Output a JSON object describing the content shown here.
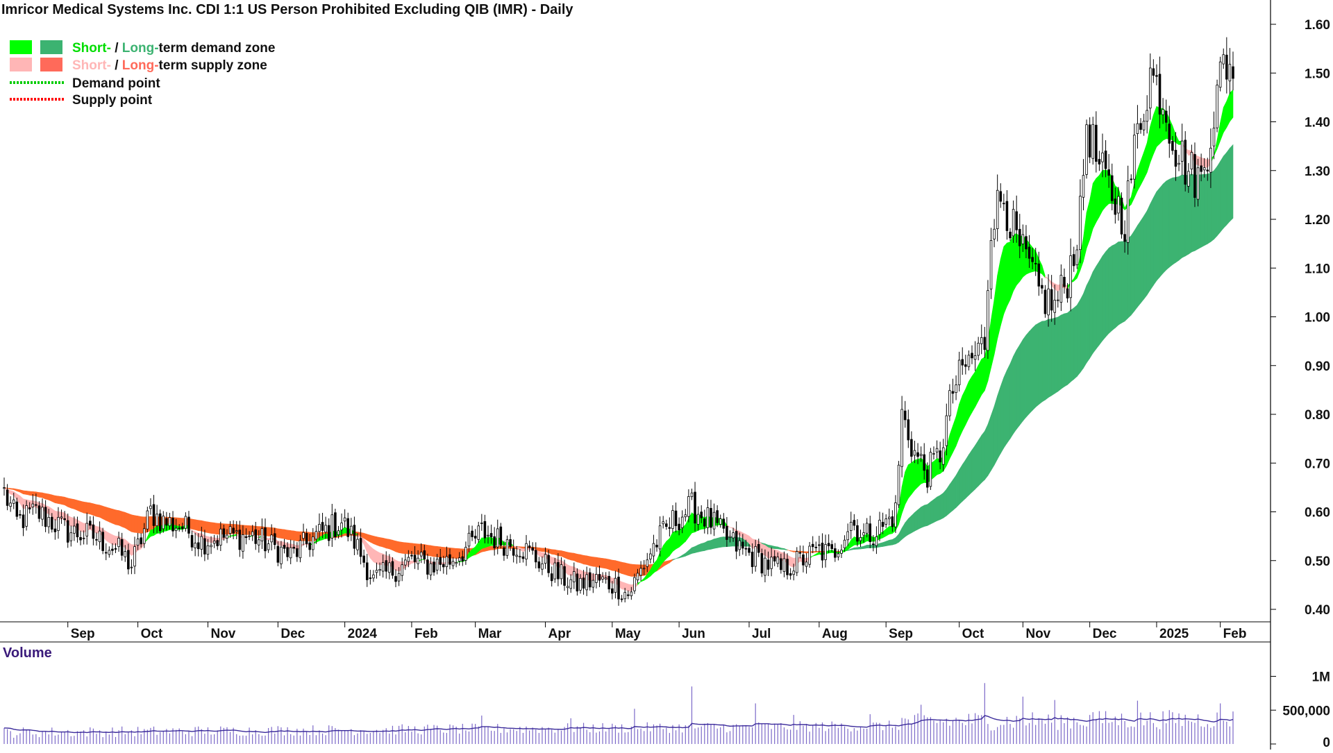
{
  "chart_data": {
    "type": "candlestick",
    "title": "Imricor Medical Systems Inc. CDI 1:1 US Person Prohibited Excluding QIB (IMR) - Daily",
    "legend": {
      "demand_zone": {
        "short": "Short-",
        "sep": " / ",
        "long": "Long-",
        "rest": "term demand zone"
      },
      "supply_zone": {
        "short": "Short-",
        "sep": " / ",
        "long": "Long-",
        "rest": "term supply zone"
      },
      "demand_point": "Demand point",
      "supply_point": "Supply point"
    },
    "colors": {
      "short_demand": "#00ff00",
      "long_demand": "#3cb371",
      "short_supply": "#ffb6b6",
      "long_supply": "#ff6a2b",
      "demand_point": "#00cc00",
      "supply_point": "#ff0000",
      "volume_bar": "#7b68c8",
      "volume_avg": "#3a2a9a",
      "candle": "#000000"
    },
    "price_axis": {
      "min": 0.4,
      "max": 1.6,
      "ticks": [
        "0.40",
        "0.50",
        "0.60",
        "0.70",
        "0.80",
        "0.90",
        "1.00",
        "1.10",
        "1.20",
        "1.30",
        "1.40",
        "1.50",
        "1.60"
      ]
    },
    "months": [
      "Sep",
      "Oct",
      "Nov",
      "Dec",
      "2024",
      "Feb",
      "Mar",
      "Apr",
      "May",
      "Jun",
      "Jul",
      "Aug",
      "Sep",
      "Oct",
      "Nov",
      "Dec",
      "2025",
      "Feb"
    ],
    "month_day_index": [
      20,
      42,
      64,
      86,
      107,
      128,
      148,
      170,
      191,
      212,
      234,
      256,
      277,
      300,
      320,
      341,
      362,
      382
    ],
    "close_anchors": [
      [
        0,
        0.64
      ],
      [
        4,
        0.58
      ],
      [
        10,
        0.6
      ],
      [
        20,
        0.56
      ],
      [
        28,
        0.55
      ],
      [
        36,
        0.52
      ],
      [
        40,
        0.49
      ],
      [
        46,
        0.6
      ],
      [
        50,
        0.58
      ],
      [
        56,
        0.57
      ],
      [
        62,
        0.54
      ],
      [
        70,
        0.55
      ],
      [
        78,
        0.55
      ],
      [
        84,
        0.53
      ],
      [
        90,
        0.51
      ],
      [
        98,
        0.55
      ],
      [
        106,
        0.58
      ],
      [
        110,
        0.54
      ],
      [
        116,
        0.46
      ],
      [
        122,
        0.48
      ],
      [
        128,
        0.5
      ],
      [
        134,
        0.49
      ],
      [
        140,
        0.5
      ],
      [
        146,
        0.53
      ],
      [
        150,
        0.56
      ],
      [
        156,
        0.54
      ],
      [
        162,
        0.53
      ],
      [
        168,
        0.5
      ],
      [
        174,
        0.47
      ],
      [
        180,
        0.45
      ],
      [
        186,
        0.46
      ],
      [
        192,
        0.45
      ],
      [
        196,
        0.43
      ],
      [
        200,
        0.48
      ],
      [
        204,
        0.53
      ],
      [
        210,
        0.58
      ],
      [
        216,
        0.61
      ],
      [
        222,
        0.58
      ],
      [
        226,
        0.55
      ],
      [
        232,
        0.52
      ],
      [
        238,
        0.5
      ],
      [
        244,
        0.48
      ],
      [
        250,
        0.5
      ],
      [
        256,
        0.52
      ],
      [
        260,
        0.51
      ],
      [
        266,
        0.58
      ],
      [
        270,
        0.55
      ],
      [
        276,
        0.57
      ],
      [
        280,
        0.6
      ],
      [
        282,
        0.8
      ],
      [
        286,
        0.72
      ],
      [
        290,
        0.68
      ],
      [
        294,
        0.72
      ],
      [
        298,
        0.85
      ],
      [
        302,
        0.9
      ],
      [
        305,
        0.92
      ],
      [
        308,
        0.95
      ],
      [
        310,
        1.2
      ],
      [
        314,
        1.25
      ],
      [
        318,
        1.15
      ],
      [
        322,
        1.1
      ],
      [
        325,
        1.05
      ],
      [
        330,
        1.02
      ],
      [
        334,
        1.08
      ],
      [
        338,
        1.2
      ],
      [
        340,
        1.4
      ],
      [
        344,
        1.3
      ],
      [
        348,
        1.25
      ],
      [
        352,
        1.2
      ],
      [
        356,
        1.38
      ],
      [
        360,
        1.5
      ],
      [
        364,
        1.45
      ],
      [
        368,
        1.35
      ],
      [
        372,
        1.3
      ],
      [
        376,
        1.28
      ],
      [
        380,
        1.42
      ],
      [
        383,
        1.52
      ]
    ],
    "volume_axis": {
      "max": 1200000,
      "ticks": [
        {
          "value": 0,
          "label": "0"
        },
        {
          "value": 500000,
          "label": "500,000"
        },
        {
          "value": 1000000,
          "label": "1M"
        }
      ]
    },
    "volume_label": "Volume",
    "volume_spikes": [
      [
        150,
        420000
      ],
      [
        178,
        380000
      ],
      [
        198,
        520000
      ],
      [
        216,
        850000
      ],
      [
        236,
        600000
      ],
      [
        248,
        430000
      ],
      [
        272,
        440000
      ],
      [
        288,
        580000
      ],
      [
        308,
        900000
      ],
      [
        320,
        700000
      ],
      [
        330,
        650000
      ],
      [
        342,
        470000
      ],
      [
        356,
        640000
      ],
      [
        382,
        600000
      ]
    ]
  }
}
